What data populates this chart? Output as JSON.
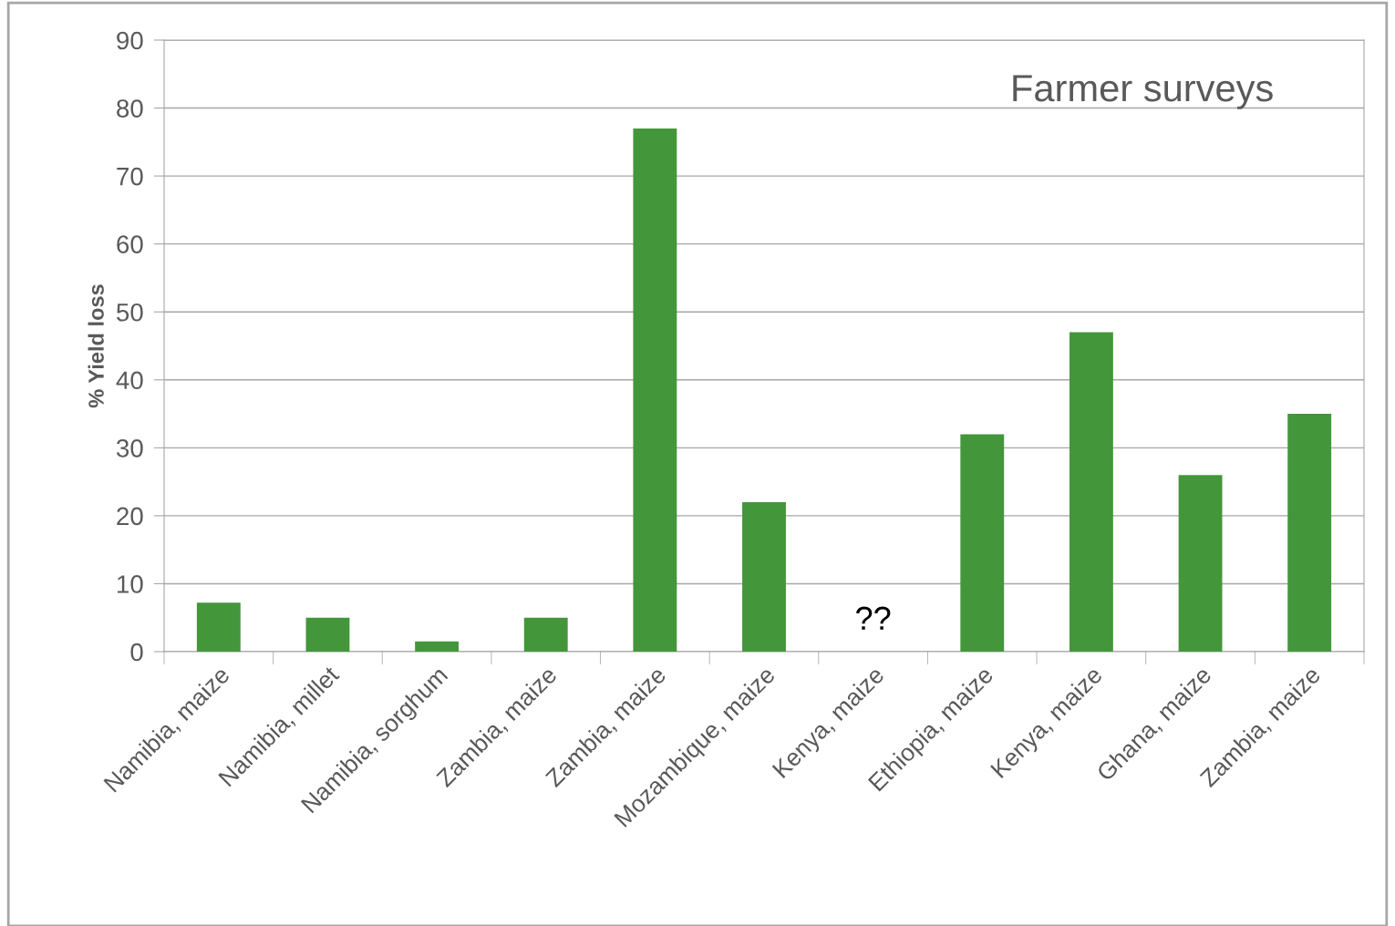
{
  "chart_data": {
    "type": "bar",
    "title": "Farmer surveys",
    "ylabel": "% Yield loss",
    "categories": [
      "Namibia, maize",
      "Namibia, millet",
      "Namibia, sorghum",
      "Zambia, maize",
      "Zambia, maize",
      "Mozambique, maize",
      "Kenya, maize",
      "Ethiopia, maize",
      "Kenya, maize",
      "Ghana, maize",
      "Zambia, maize"
    ],
    "values": [
      7.2,
      5,
      1.5,
      5,
      77,
      22,
      null,
      32,
      47,
      26,
      35
    ],
    "color": "#43963a",
    "ylim": [
      0,
      90
    ],
    "yticks": [
      0,
      10,
      20,
      30,
      40,
      50,
      60,
      70,
      80,
      90
    ],
    "grid": "y",
    "annotations": [
      "??"
    ]
  }
}
